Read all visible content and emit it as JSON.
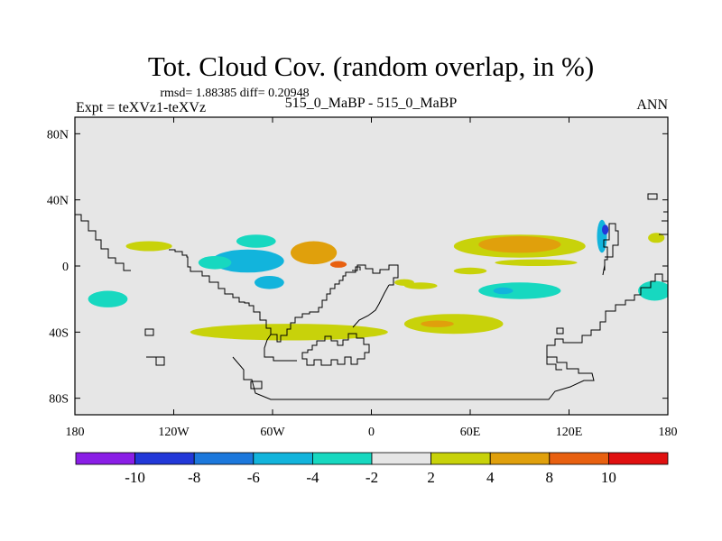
{
  "chart_data": {
    "type": "heatmap",
    "title": "Tot. Cloud Cov. (random overlap, in %)",
    "stats_line": "rmsd= 1.88385 diff= 0.20948",
    "left_label": "Expt = teXVz1-teXVz",
    "center_label": "515_0_MaBP - 515_0_MaBP",
    "right_label": "ANN",
    "projection": "cylindrical equidistant",
    "xlim": [
      -180,
      180
    ],
    "ylim": [
      -90,
      90
    ],
    "x_ticks": [
      {
        "value": -180,
        "label": "180"
      },
      {
        "value": -120,
        "label": "120W"
      },
      {
        "value": -60,
        "label": "60W"
      },
      {
        "value": 0,
        "label": "0"
      },
      {
        "value": 60,
        "label": "60E"
      },
      {
        "value": 120,
        "label": "120E"
      },
      {
        "value": 180,
        "label": "180"
      }
    ],
    "y_ticks": [
      {
        "value": 80,
        "label": "80N"
      },
      {
        "value": 40,
        "label": "40N"
      },
      {
        "value": 0,
        "label": "0"
      },
      {
        "value": -40,
        "label": "40S"
      },
      {
        "value": -80,
        "label": "80S"
      }
    ],
    "colorbar": {
      "levels": [
        -10,
        -8,
        -6,
        -4,
        -2,
        2,
        4,
        8,
        10
      ],
      "labels": [
        "-10",
        "-8",
        "-6",
        "-4",
        "-2",
        "2",
        "4",
        "8",
        "10"
      ],
      "colors": [
        "#8a1ee6",
        "#2238d8",
        "#1c78dc",
        "#12b4dc",
        "#17d8c0",
        "#e6e6e6",
        "#c8d20a",
        "#e0a00c",
        "#e86010",
        "#e01010"
      ]
    },
    "anomalies": [
      {
        "lon": -35,
        "lat": 8,
        "a": 14,
        "b": 7,
        "value": 5
      },
      {
        "lon": -20,
        "lat": 1,
        "a": 5,
        "b": 2,
        "value": 8.5
      },
      {
        "lon": -75,
        "lat": 3,
        "a": 22,
        "b": 7,
        "value": -4.5
      },
      {
        "lon": -62,
        "lat": -10,
        "a": 9,
        "b": 4,
        "value": -5
      },
      {
        "lon": -70,
        "lat": 15,
        "a": 12,
        "b": 4,
        "value": -2.5
      },
      {
        "lon": -95,
        "lat": 2,
        "a": 10,
        "b": 4,
        "value": -3
      },
      {
        "lon": -135,
        "lat": 12,
        "a": 14,
        "b": 3,
        "value": 2.5
      },
      {
        "lon": -160,
        "lat": -20,
        "a": 12,
        "b": 5,
        "value": -3
      },
      {
        "lon": -50,
        "lat": -40,
        "a": 60,
        "b": 5,
        "value": 3
      },
      {
        "lon": 50,
        "lat": -35,
        "a": 30,
        "b": 6,
        "value": 3
      },
      {
        "lon": 40,
        "lat": -35,
        "a": 10,
        "b": 2,
        "value": 5
      },
      {
        "lon": 90,
        "lat": 12,
        "a": 40,
        "b": 7,
        "value": 3
      },
      {
        "lon": 90,
        "lat": 13,
        "a": 25,
        "b": 5,
        "value": 5
      },
      {
        "lon": 100,
        "lat": 2,
        "a": 25,
        "b": 2,
        "value": 2.5
      },
      {
        "lon": 90,
        "lat": -15,
        "a": 25,
        "b": 5,
        "value": -4
      },
      {
        "lon": 80,
        "lat": -15,
        "a": 6,
        "b": 2,
        "value": -6
      },
      {
        "lon": 60,
        "lat": -3,
        "a": 10,
        "b": 2,
        "value": 2.5
      },
      {
        "lon": 140,
        "lat": 18,
        "a": 3,
        "b": 10,
        "value": -6
      },
      {
        "lon": 142,
        "lat": 22,
        "a": 2,
        "b": 3,
        "value": -10
      },
      {
        "lon": 173,
        "lat": 17,
        "a": 5,
        "b": 3,
        "value": 3
      },
      {
        "lon": 172,
        "lat": -15,
        "a": 10,
        "b": 6,
        "value": -3
      },
      {
        "lon": 30,
        "lat": -12,
        "a": 10,
        "b": 2,
        "value": 2.5
      },
      {
        "lon": 20,
        "lat": -10,
        "a": 6,
        "b": 2,
        "value": 2.5
      }
    ]
  }
}
